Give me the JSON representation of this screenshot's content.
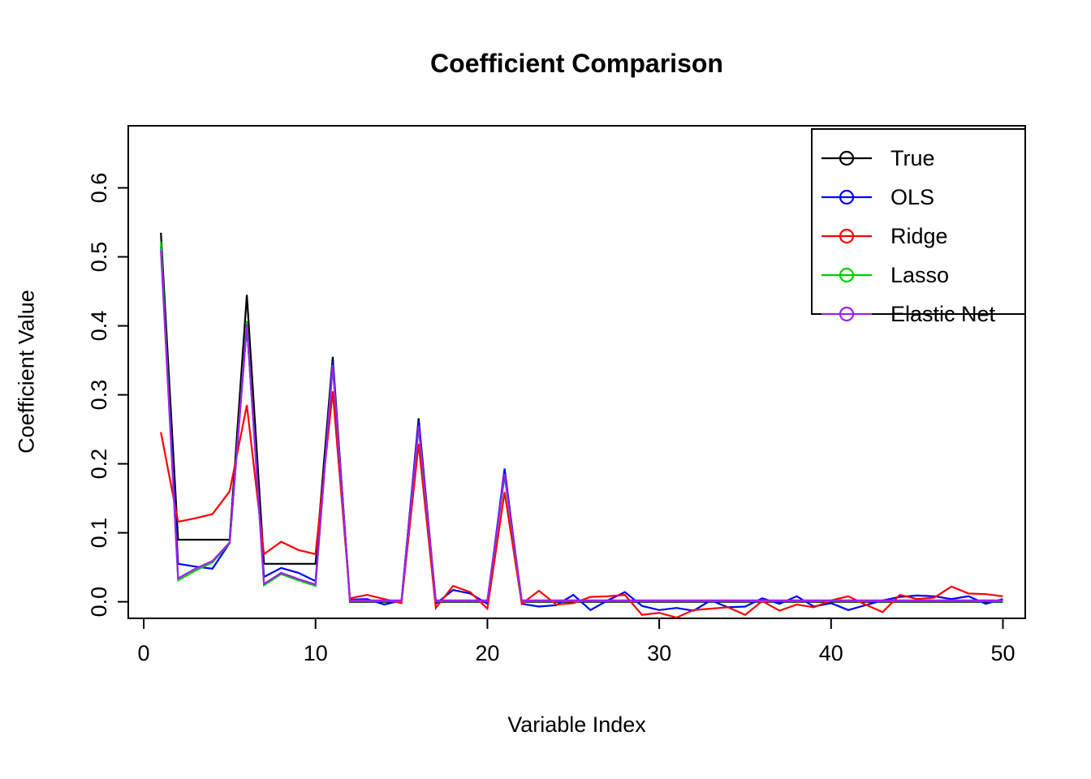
{
  "figure": {
    "title": "Coefficient Comparison",
    "xlabel": "Variable Index",
    "ylabel": "Coefficient Value"
  },
  "chart_data": {
    "type": "line",
    "title": "Coefficient Comparison",
    "xlabel": "Variable Index",
    "ylabel": "Coefficient Value",
    "grid": false,
    "legend_position": "topright",
    "xlim": [
      -0.9,
      51.3
    ],
    "ylim": [
      -0.024,
      0.69
    ],
    "x_ticks": [
      0,
      10,
      20,
      30,
      40,
      50
    ],
    "x_tick_labels": [
      "0",
      "10",
      "20",
      "30",
      "40",
      "50"
    ],
    "y_ticks": [
      0.0,
      0.1,
      0.2,
      0.3,
      0.4,
      0.5,
      0.6
    ],
    "y_tick_labels": [
      "0.0",
      "0.1",
      "0.2",
      "0.3",
      "0.4",
      "0.5",
      "0.6"
    ],
    "x": [
      1,
      2,
      3,
      4,
      5,
      6,
      7,
      8,
      9,
      10,
      11,
      12,
      13,
      14,
      15,
      16,
      17,
      18,
      19,
      20,
      21,
      22,
      23,
      24,
      25,
      26,
      27,
      28,
      29,
      30,
      31,
      32,
      33,
      34,
      35,
      36,
      37,
      38,
      39,
      40,
      41,
      42,
      43,
      44,
      45,
      46,
      47,
      48,
      49,
      50
    ],
    "series": [
      {
        "name": "True",
        "color": "#000000",
        "values": [
          0.535,
          0.09,
          0.09,
          0.09,
          0.09,
          0.445,
          0.055,
          0.055,
          0.055,
          0.055,
          0.355,
          0,
          0,
          0,
          0,
          0.266,
          0,
          0,
          0,
          0,
          0.19,
          0,
          0,
          0,
          0,
          0,
          0,
          0,
          0,
          0,
          0,
          0,
          0,
          0,
          0,
          0,
          0,
          0,
          0,
          0,
          0,
          0,
          0,
          0,
          0,
          0,
          0,
          0,
          0,
          0
        ]
      },
      {
        "name": "OLS",
        "color": "#0000FF",
        "values": [
          0.515,
          0.055,
          0.051,
          0.048,
          0.085,
          0.4,
          0.036,
          0.049,
          0.042,
          0.03,
          0.348,
          0.003,
          0.004,
          -0.004,
          0.002,
          0.262,
          -0.003,
          0.017,
          0.012,
          -0.003,
          0.193,
          -0.003,
          -0.007,
          -0.005,
          0.01,
          -0.012,
          0.002,
          0.014,
          -0.006,
          -0.012,
          -0.009,
          -0.013,
          0.002,
          -0.008,
          -0.007,
          0.005,
          -0.003,
          0.008,
          -0.007,
          -0.002,
          -0.012,
          -0.005,
          0.002,
          0.007,
          0.009,
          0.008,
          0.004,
          0.008,
          -0.003,
          0.004
        ]
      },
      {
        "name": "Ridge",
        "color": "#FF0000",
        "values": [
          0.246,
          0.116,
          0.121,
          0.127,
          0.16,
          0.285,
          0.069,
          0.087,
          0.075,
          0.069,
          0.305,
          0.005,
          0.01,
          0.004,
          -0.002,
          0.229,
          -0.009,
          0.023,
          0.014,
          -0.01,
          0.159,
          -0.003,
          0.016,
          -0.004,
          -0.002,
          0.007,
          0.008,
          0.01,
          -0.019,
          -0.016,
          -0.023,
          -0.012,
          -0.01,
          -0.008,
          -0.019,
          0.001,
          -0.013,
          -0.004,
          -0.008,
          0.002,
          0.008,
          -0.004,
          -0.015,
          0.01,
          0.004,
          0.006,
          0.022,
          0.012,
          0.011,
          0.008
        ]
      },
      {
        "name": "Lasso",
        "color": "#00CD00",
        "values": [
          0.522,
          0.031,
          0.045,
          0.057,
          0.085,
          0.407,
          0.024,
          0.04,
          0.031,
          0.023,
          0.343,
          0.001,
          0.001,
          0.001,
          0.001,
          0.252,
          0.001,
          0.001,
          0.001,
          0.001,
          0.182,
          0.001,
          0.001,
          0.001,
          0.001,
          0.001,
          0.001,
          0.001,
          0.001,
          0.001,
          0.001,
          0.001,
          0.001,
          0.001,
          0.001,
          0.001,
          0.001,
          0.001,
          0.001,
          0.001,
          0.001,
          0.001,
          0.001,
          0.001,
          0.001,
          0.001,
          0.001,
          0.001,
          0.001,
          0.001
        ]
      },
      {
        "name": "Elastic Net",
        "color": "#A020F0",
        "values": [
          0.509,
          0.034,
          0.048,
          0.059,
          0.086,
          0.402,
          0.026,
          0.042,
          0.033,
          0.025,
          0.342,
          0.002,
          0.002,
          0.002,
          0.002,
          0.255,
          0.002,
          0.002,
          0.002,
          0.002,
          0.185,
          0.002,
          0.002,
          0.002,
          0.002,
          0.002,
          0.002,
          0.002,
          0.002,
          0.002,
          0.002,
          0.002,
          0.002,
          0.002,
          0.002,
          0.002,
          0.002,
          0.002,
          0.002,
          0.002,
          0.002,
          0.002,
          0.002,
          0.002,
          0.002,
          0.002,
          0.002,
          0.002,
          0.002,
          0.002
        ]
      }
    ]
  }
}
